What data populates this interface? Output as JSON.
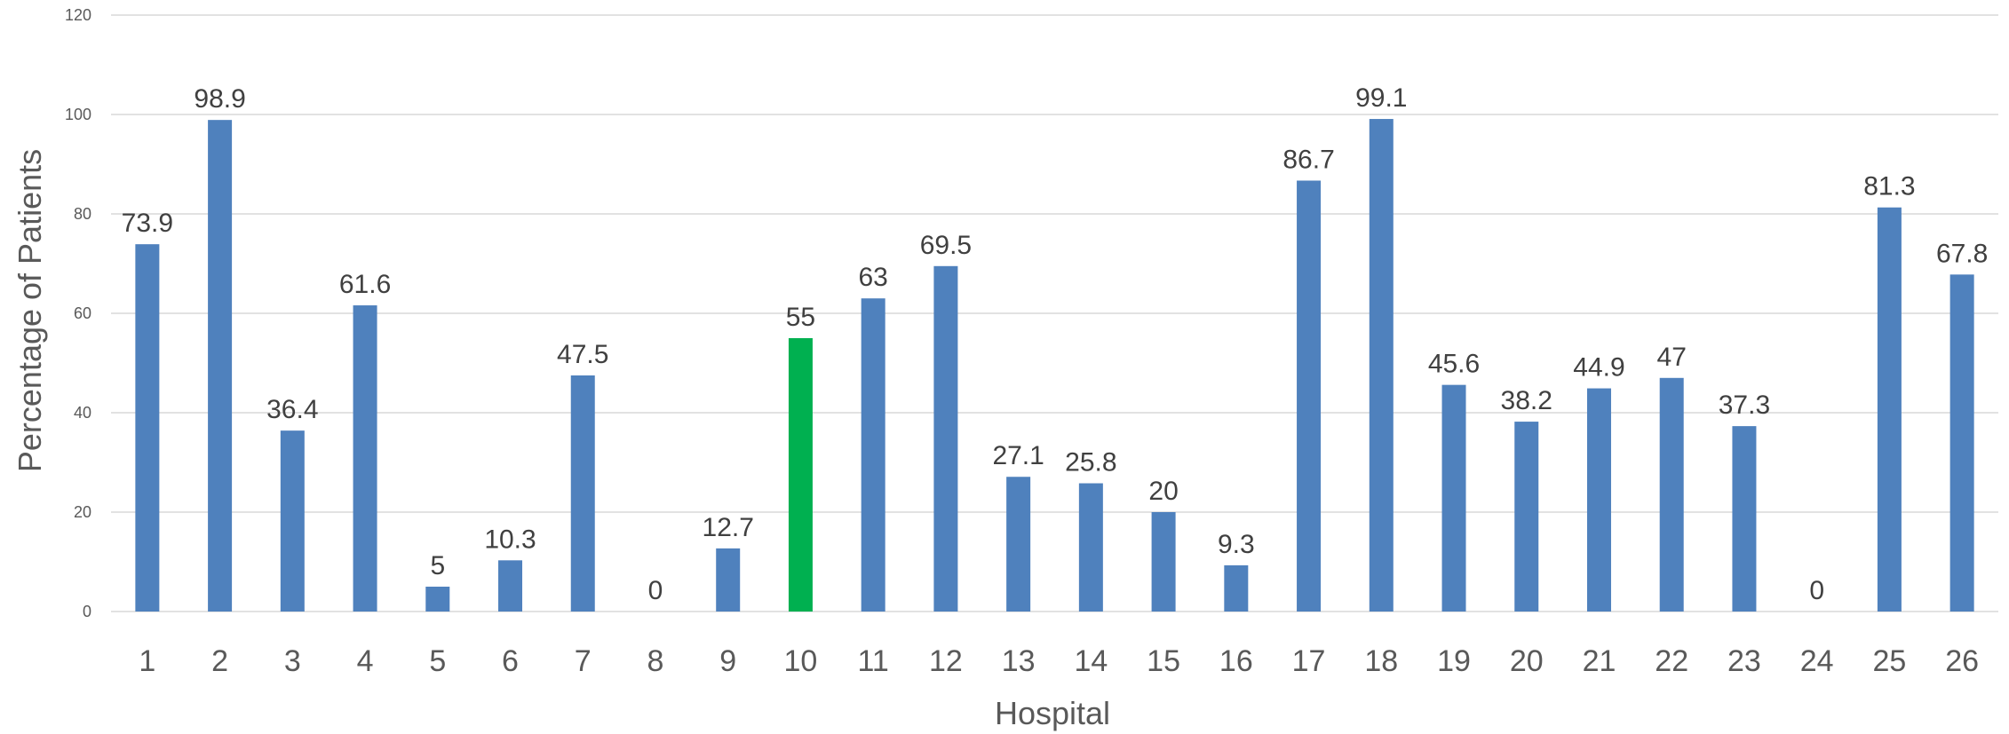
{
  "chart_data": {
    "type": "bar",
    "categories": [
      "1",
      "2",
      "3",
      "4",
      "5",
      "6",
      "7",
      "8",
      "9",
      "10",
      "11",
      "12",
      "13",
      "14",
      "15",
      "16",
      "17",
      "18",
      "19",
      "20",
      "21",
      "22",
      "23",
      "24",
      "25",
      "26"
    ],
    "values": [
      73.9,
      98.9,
      36.4,
      61.6,
      5,
      10.3,
      47.5,
      0,
      12.7,
      55,
      63,
      69.5,
      27.1,
      25.8,
      20,
      9.3,
      86.7,
      99.1,
      45.6,
      38.2,
      44.9,
      47,
      37.3,
      0,
      81.3,
      67.8
    ],
    "data_labels": [
      "73.9",
      "98.9",
      "36.4",
      "61.6",
      "5",
      "10.3",
      "47.5",
      "0",
      "12.7",
      "55",
      "63",
      "69.5",
      "27.1",
      "25.8",
      "20",
      "9.3",
      "86.7",
      "99.1",
      "45.6",
      "38.2",
      "44.9",
      "47",
      "37.3",
      "0",
      "81.3",
      "67.8"
    ],
    "highlight_index": 9,
    "xlabel": "Hospital",
    "ylabel": "Percentage of Patients",
    "ylim": [
      0,
      120
    ],
    "yticks": [
      "0",
      "20",
      "40",
      "60",
      "80",
      "100",
      "120"
    ],
    "grid": true,
    "colors": {
      "bar": "#4f81bd",
      "highlight": "#00b050"
    }
  }
}
